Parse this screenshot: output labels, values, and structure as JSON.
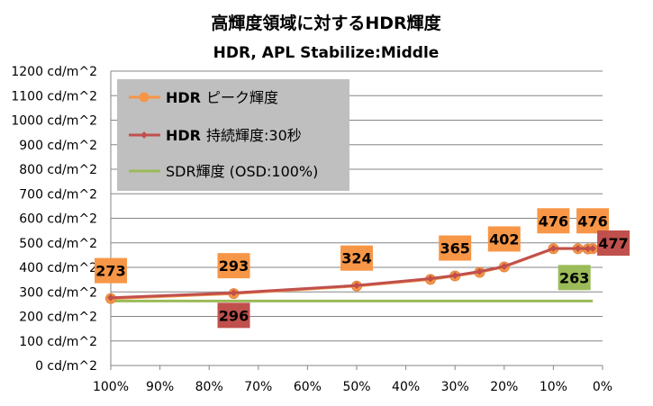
{
  "chart_data": {
    "type": "line",
    "title": "高輝度領域に対するHDR輝度",
    "subtitle": "HDR, APL Stabilize:Middle",
    "xlabel": "",
    "ylabel": "",
    "x_reversed": true,
    "xlim": [
      0,
      100
    ],
    "ylim": [
      0,
      1200
    ],
    "y_step": 100,
    "y_unit": " cd/m^2",
    "x_ticks": [
      100,
      90,
      80,
      70,
      60,
      50,
      40,
      30,
      20,
      10,
      0
    ],
    "x_tick_labels": [
      "100%",
      "90%",
      "80%",
      "70%",
      "60%",
      "50%",
      "40%",
      "30%",
      "20%",
      "10%",
      "0%"
    ],
    "y_tick_labels": [
      "0 cd/m^2",
      "100 cd/m^2",
      "200 cd/m^2",
      "300 cd/m^2",
      "400 cd/m^2",
      "500 cd/m^2",
      "600 cd/m^2",
      "700 cd/m^2",
      "800 cd/m^2",
      "900 cd/m^2",
      "1000 cd/m^2",
      "1100 cd/m^2",
      "1200 cd/m^2"
    ],
    "grid": true,
    "legend_position": "top-left",
    "series": [
      {
        "name": "HDR ピーク輝度",
        "legend_bold": "HDR",
        "legend_rest": "ピーク輝度",
        "color": "#f79646",
        "marker": "circle",
        "x": [
          100,
          75,
          50,
          35,
          30,
          25,
          20,
          10,
          5,
          3,
          2
        ],
        "values": [
          273,
          293,
          324,
          351,
          365,
          380,
          402,
          476,
          476,
          475,
          476
        ]
      },
      {
        "name": "HDR 持続輝度:30秒",
        "legend_bold": "HDR",
        "legend_rest": "持続輝度:30秒",
        "color": "#c0504d",
        "marker": "diamond",
        "x": [
          100,
          75,
          50,
          35,
          30,
          25,
          20,
          10,
          5,
          3,
          2
        ],
        "values": [
          276,
          296,
          326,
          354,
          367,
          383,
          404,
          477,
          477,
          476,
          477
        ]
      },
      {
        "name": "SDR輝度 (OSD:100%)",
        "color": "#9bbb59",
        "marker": "none",
        "x": [
          100,
          2
        ],
        "values": [
          263,
          263
        ]
      }
    ],
    "annotations": [
      {
        "text": "273",
        "style": "peak",
        "x": 100,
        "y": 273
      },
      {
        "text": "293",
        "style": "peak",
        "x": 75,
        "y": 293
      },
      {
        "text": "324",
        "style": "peak",
        "x": 50,
        "y": 324
      },
      {
        "text": "365",
        "style": "peak",
        "x": 30,
        "y": 365
      },
      {
        "text": "402",
        "style": "peak",
        "x": 20,
        "y": 402
      },
      {
        "text": "476",
        "style": "peak",
        "x": 10,
        "y": 476
      },
      {
        "text": "476",
        "style": "peak",
        "x": 2,
        "y": 476
      },
      {
        "text": "296",
        "style": "sustained",
        "x": 75,
        "y": 296
      },
      {
        "text": "477",
        "style": "sustained",
        "x": 2,
        "y": 477
      },
      {
        "text": "263",
        "style": "sdr",
        "x": 5,
        "y": 263
      }
    ],
    "annotation_colors": {
      "peak": "#f79646",
      "sustained": "#c0504d",
      "sdr": "#9bbb59"
    }
  }
}
